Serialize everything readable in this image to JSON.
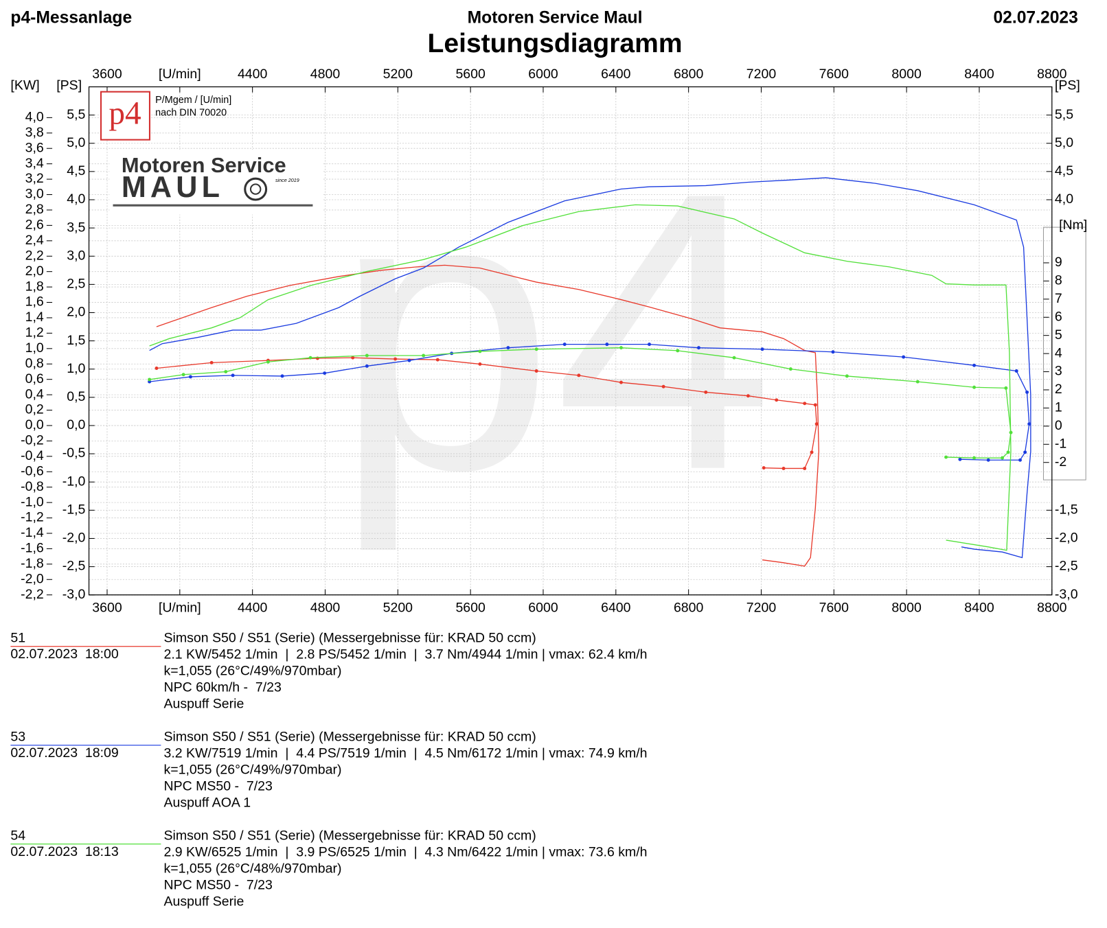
{
  "chart_data": {
    "type": "line",
    "header_left": "p4-Messanlage",
    "header_center": "Motoren Service Maul",
    "header_right": "02.07.2023",
    "title": "Leistungsdiagramm",
    "subtitle_1": "P/Mgem / [U/min]",
    "subtitle_2": "nach DIN 70020",
    "watermark": "p4",
    "logo_badge": "p4",
    "logo_line_1": "Motoren Service",
    "logo_line_2": "MAUL",
    "logo_since": "since 2019",
    "kw_label": "[KW]",
    "ps_label": "[PS]",
    "ps_right_label": "[PS]",
    "nm_label": "[Nm]",
    "grid": true,
    "xlim": [
      3500,
      8800
    ],
    "xticks": [
      3600,
      {
        "value": 4000,
        "label": "[U/min]"
      },
      4400,
      4800,
      5200,
      5600,
      6000,
      6400,
      6800,
      7200,
      7600,
      8000,
      8400,
      8800
    ],
    "ylim": [
      -3,
      6
    ],
    "yticks": [
      {
        "value": -3.0,
        "label": "-3,0"
      },
      {
        "value": -2.5,
        "label": "-2,5"
      },
      {
        "value": -2.0,
        "label": "-2,0"
      },
      {
        "value": -1.5,
        "label": "-1,5"
      },
      {
        "value": -1.0,
        "label": "-1,0"
      },
      {
        "value": -0.5,
        "label": "-0,5"
      },
      {
        "value": 0.0,
        "label": "0,0"
      },
      {
        "value": 0.5,
        "label": "0,5"
      },
      {
        "value": 1.0,
        "label": "1,0"
      },
      {
        "value": 1.5,
        "label": "1,5"
      },
      {
        "value": 2.0,
        "label": "2,0"
      },
      {
        "value": 2.5,
        "label": "2,5"
      },
      {
        "value": 3.0,
        "label": "3,0"
      },
      {
        "value": 3.5,
        "label": "3,5"
      },
      {
        "value": 4.0,
        "label": "4,0"
      },
      {
        "value": 4.5,
        "label": "4,5"
      },
      {
        "value": 5.0,
        "label": "5,0"
      },
      {
        "value": 5.5,
        "label": "5,5"
      }
    ],
    "y_right_ticks": [
      {
        "value": 5.5,
        "label": "5,5"
      },
      {
        "value": 5.0,
        "label": "5,0"
      },
      {
        "value": 4.5,
        "label": "4,5"
      },
      {
        "value": 4.0,
        "label": "4,0"
      },
      {
        "value": -1.5,
        "label": "-1,5"
      },
      {
        "value": -2.0,
        "label": "-2,0"
      },
      {
        "value": -2.5,
        "label": "-2,5"
      },
      {
        "value": -3.0,
        "label": "-3,0"
      }
    ],
    "y_kw_lim": [
      -2.2,
      4.4
    ],
    "y_kw_ticks": [
      {
        "value": -2.2,
        "label": "-2,2"
      },
      {
        "value": -2.0,
        "label": "-2,0"
      },
      {
        "value": -1.8,
        "label": "-1,8"
      },
      {
        "value": -1.6,
        "label": "-1,6"
      },
      {
        "value": -1.4,
        "label": "-1,4"
      },
      {
        "value": -1.2,
        "label": "-1,2"
      },
      {
        "value": -1.0,
        "label": "-1,0"
      },
      {
        "value": -0.8,
        "label": "-0,8"
      },
      {
        "value": -0.6,
        "label": "-0,6"
      },
      {
        "value": -0.4,
        "label": "-0,4"
      },
      {
        "value": -0.2,
        "label": "-0,2"
      },
      {
        "value": 0.0,
        "label": "0,0"
      },
      {
        "value": 0.2,
        "label": "0,2"
      },
      {
        "value": 0.4,
        "label": "0,4"
      },
      {
        "value": 0.6,
        "label": "0,6"
      },
      {
        "value": 0.8,
        "label": "0,8"
      },
      {
        "value": 1.0,
        "label": "1,0"
      },
      {
        "value": 1.2,
        "label": "1,2"
      },
      {
        "value": 1.4,
        "label": "1,4"
      },
      {
        "value": 1.6,
        "label": "1,6"
      },
      {
        "value": 1.8,
        "label": "1,8"
      },
      {
        "value": 2.0,
        "label": "2,0"
      },
      {
        "value": 2.2,
        "label": "2,2"
      },
      {
        "value": 2.4,
        "label": "2,4"
      },
      {
        "value": 2.6,
        "label": "2,6"
      },
      {
        "value": 2.8,
        "label": "2,8"
      },
      {
        "value": 3.0,
        "label": "3,0"
      },
      {
        "value": 3.2,
        "label": "3,2"
      },
      {
        "value": 3.4,
        "label": "3,4"
      },
      {
        "value": 3.6,
        "label": "3,6"
      },
      {
        "value": 3.8,
        "label": "3,8"
      },
      {
        "value": 4.0,
        "label": "4,0"
      }
    ],
    "y2lim": [
      -9.3,
      18.7
    ],
    "y2ticks": [
      -2,
      -1,
      0,
      1,
      2,
      3,
      4,
      5,
      6,
      7,
      8,
      9
    ],
    "series": [
      {
        "name": "51",
        "color": "#e8392b",
        "date": "02.07.2023  18:00",
        "notes": [
          "Simson S50 / S51 (Serie) (Messergebnisse für: KRAD 50 ccm)",
          "2.1 KW/5452 1/min  |  2.8 PS/5452 1/min  |  3.7 Nm/4944 1/min | vmax: 62.4 km/h",
          "k=1,055 (26°C/49%/970mbar)",
          "NPC 60km/h -  7/23",
          "Auspuff Serie"
        ],
        "x": [
          3872,
          4175,
          4369,
          4603,
          4875,
          5108,
          5302,
          5458,
          5652,
          5963,
          6196,
          6429,
          6584,
          6818,
          6973,
          7206,
          7323,
          7439,
          7498,
          7509,
          7517,
          7498,
          7471,
          7439,
          7323,
          7206
        ],
        "values": [
          1.75,
          2.09,
          2.29,
          2.48,
          2.64,
          2.75,
          2.81,
          2.84,
          2.79,
          2.54,
          2.41,
          2.23,
          2.1,
          1.89,
          1.73,
          1.66,
          1.54,
          1.33,
          1.29,
          0.54,
          -0.46,
          -1.46,
          -2.34,
          -2.49,
          -2.43,
          -2.38
        ],
        "torque_x": [
          3872,
          4175,
          4486,
          4758,
          4952,
          5186,
          5419,
          5652,
          5963,
          6196,
          6429,
          6662,
          6895,
          7128,
          7284,
          7439,
          7498,
          7505,
          7478,
          7439,
          7323,
          7214
        ],
        "torque_values": [
          3.19,
          3.5,
          3.62,
          3.74,
          3.77,
          3.7,
          3.66,
          3.42,
          3.04,
          2.8,
          2.41,
          2.18,
          1.87,
          1.67,
          1.44,
          1.25,
          1.17,
          0.12,
          -1.44,
          -2.33,
          -2.33,
          -2.3
        ]
      },
      {
        "name": "53",
        "color": "#1a3be0",
        "date": "02.07.2023  18:09",
        "notes": [
          "Simson S50 / S51 (Serie) (Messergebnisse für: KRAD 50 ccm)",
          "3.2 KW/7519 1/min  |  4.4 PS/7519 1/min  |  4.5 Nm/6172 1/min | vmax: 74.9 km/h",
          "k=1,055 (26°C/49%/970mbar)",
          "NPC MS50 -  7/23",
          "Auspuff AOA 1"
        ],
        "x": [
          3833,
          3903,
          4097,
          4292,
          4447,
          4641,
          4875,
          4991,
          5186,
          5341,
          5535,
          5807,
          6118,
          6429,
          6584,
          6895,
          7128,
          7362,
          7556,
          7828,
          8061,
          8372,
          8605,
          8644,
          8663,
          8683,
          8683,
          8663,
          8636,
          8527,
          8372,
          8302
        ],
        "values": [
          1.33,
          1.45,
          1.56,
          1.69,
          1.69,
          1.81,
          2.09,
          2.29,
          2.6,
          2.79,
          3.16,
          3.6,
          3.98,
          4.19,
          4.23,
          4.25,
          4.31,
          4.35,
          4.39,
          4.29,
          4.16,
          3.91,
          3.64,
          3.16,
          1.91,
          0.54,
          -0.46,
          -1.21,
          -2.34,
          -2.24,
          -2.19,
          -2.15
        ],
        "torque_x": [
          3833,
          4059,
          4292,
          4564,
          4797,
          5030,
          5263,
          5496,
          5807,
          6118,
          6351,
          6584,
          6856,
          7206,
          7595,
          7983,
          8372,
          8605,
          8663,
          8675,
          8652,
          8625,
          8450,
          8294
        ],
        "torque_values": [
          2.45,
          2.72,
          2.8,
          2.76,
          2.92,
          3.31,
          3.62,
          4.01,
          4.32,
          4.51,
          4.51,
          4.51,
          4.32,
          4.24,
          4.09,
          3.81,
          3.35,
          3.04,
          1.87,
          0.12,
          -1.44,
          -1.87,
          -1.87,
          -1.83
        ]
      },
      {
        "name": "54",
        "color": "#52e03a",
        "date": "02.07.2023  18:13",
        "notes": [
          "Simson S50 / S51 (Serie) (Messergebnisse für: KRAD 50 ccm)",
          "2.9 KW/6525 1/min  |  3.9 PS/6525 1/min  |  4.3 Nm/6422 1/min | vmax: 73.6 km/h",
          "k=1,055 (26°C/48%/970mbar)",
          "NPC MS50 -  7/23",
          "Auspuff Serie"
        ],
        "x": [
          3833,
          3942,
          4175,
          4331,
          4486,
          4719,
          5030,
          5341,
          5574,
          5885,
          6196,
          6507,
          6740,
          7051,
          7206,
          7439,
          7672,
          7906,
          8139,
          8217,
          8372,
          8547,
          8566,
          8574,
          8551,
          8450,
          8217
        ],
        "values": [
          1.41,
          1.54,
          1.73,
          1.91,
          2.23,
          2.48,
          2.73,
          2.94,
          3.16,
          3.54,
          3.79,
          3.91,
          3.89,
          3.66,
          3.41,
          3.06,
          2.91,
          2.81,
          2.66,
          2.51,
          2.49,
          2.49,
          1.29,
          -0.46,
          -2.21,
          -2.15,
          -2.03
        ],
        "torque_x": [
          3833,
          4020,
          4253,
          4486,
          4719,
          5030,
          5341,
          5652,
          5963,
          6429,
          6740,
          7051,
          7362,
          7672,
          8061,
          8372,
          8547,
          8574,
          8559,
          8527,
          8372,
          8217
        ],
        "torque_values": [
          2.57,
          2.84,
          3.0,
          3.54,
          3.77,
          3.89,
          3.89,
          4.12,
          4.24,
          4.32,
          4.16,
          3.77,
          3.15,
          2.76,
          2.45,
          2.14,
          2.1,
          -0.35,
          -1.44,
          -1.75,
          -1.75,
          -1.71
        ]
      }
    ]
  }
}
